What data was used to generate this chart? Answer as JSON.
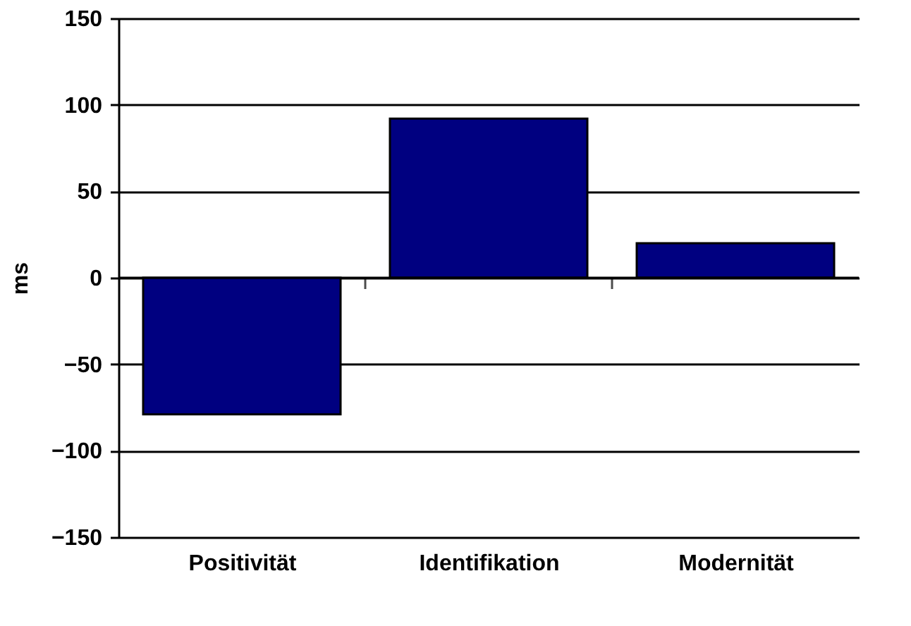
{
  "chart_data": {
    "type": "bar",
    "ylabel": "ms",
    "categories": [
      "Positivität",
      "Identifikation",
      "Modernität"
    ],
    "values": [
      -79,
      92,
      20
    ],
    "color": "#000080",
    "ylim": [
      -150,
      150
    ],
    "yticks": [
      -150,
      -100,
      -50,
      0,
      50,
      100,
      150
    ],
    "grid": "y"
  }
}
